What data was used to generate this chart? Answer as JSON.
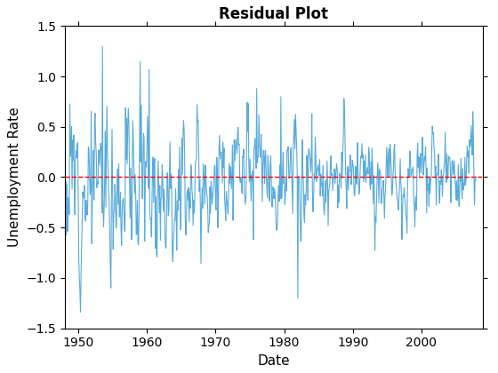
{
  "title": "Residual Plot",
  "xlabel": "Date",
  "ylabel": "Unemployment Rate",
  "xlim": [
    1948.0,
    2009.0
  ],
  "ylim": [
    -1.5,
    1.5
  ],
  "xticks": [
    1950,
    1960,
    1970,
    1980,
    1990,
    2000
  ],
  "yticks": [
    -1.5,
    -1.0,
    -0.5,
    0.0,
    0.5,
    1.0,
    1.5
  ],
  "line_color": "#5aabdb",
  "hline_color": "#ff0000",
  "hline_y": 0,
  "hline_style": "--",
  "background_color": "#ffffff",
  "seed": 12,
  "start_year": 1948,
  "end_year": 2008,
  "n_months": 732,
  "title_fontsize": 12,
  "label_fontsize": 11,
  "figsize": [
    5.6,
    4.2
  ],
  "dpi": 100
}
